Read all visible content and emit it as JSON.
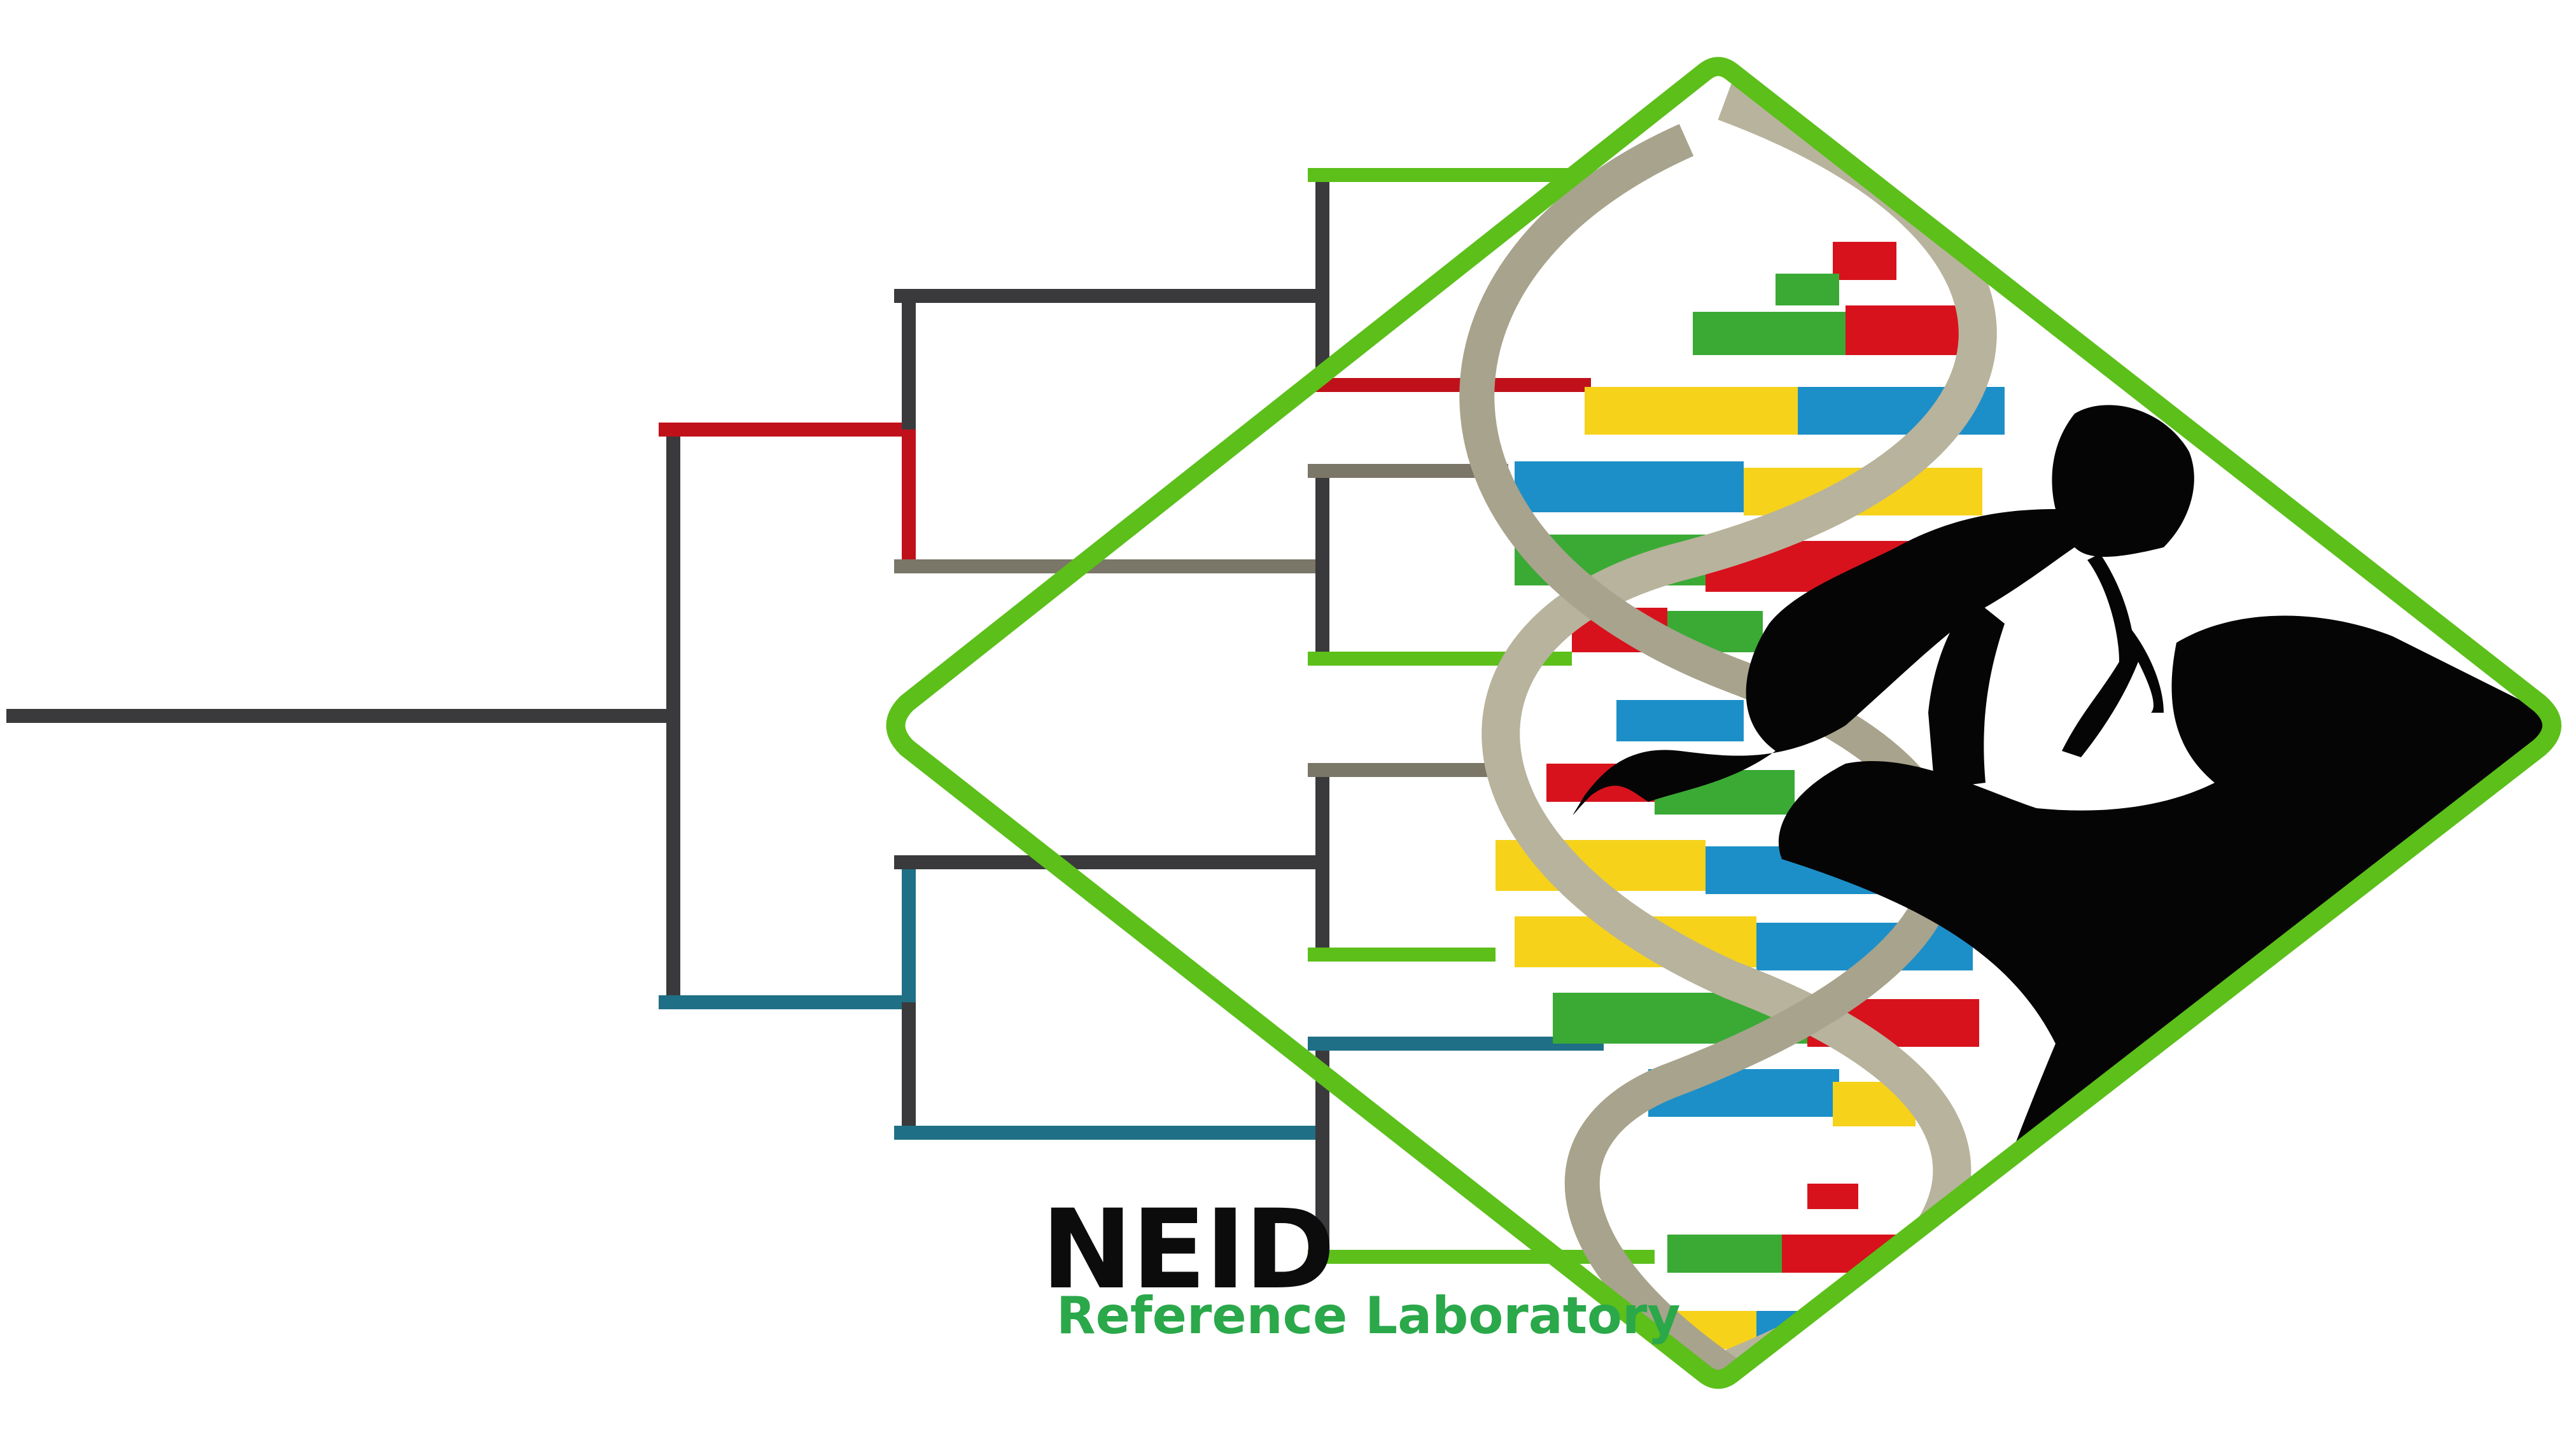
{
  "logo": {
    "title": "NEID",
    "subtitle": "Reference Laboratory"
  },
  "colors": {
    "branch_dark": "#3a3a3c",
    "branch_red": "#c0111a",
    "branch_teal": "#1f6f86",
    "branch_gray": "#7a7668",
    "branch_green": "#5cbf1a",
    "frame_green": "#5cbf1a",
    "text_green": "#2aa84a",
    "dna_backbone": "#b8b39c",
    "base_green": "#3aaa35",
    "base_red": "#d7121c",
    "base_yellow": "#f6d21b",
    "base_blue": "#1c8fc8",
    "silhouette": "#050505"
  },
  "icons": [
    "phylogenetic-tree-icon",
    "dna-helix-icon",
    "parent-child-silhouette-icon",
    "diamond-frame-icon"
  ]
}
